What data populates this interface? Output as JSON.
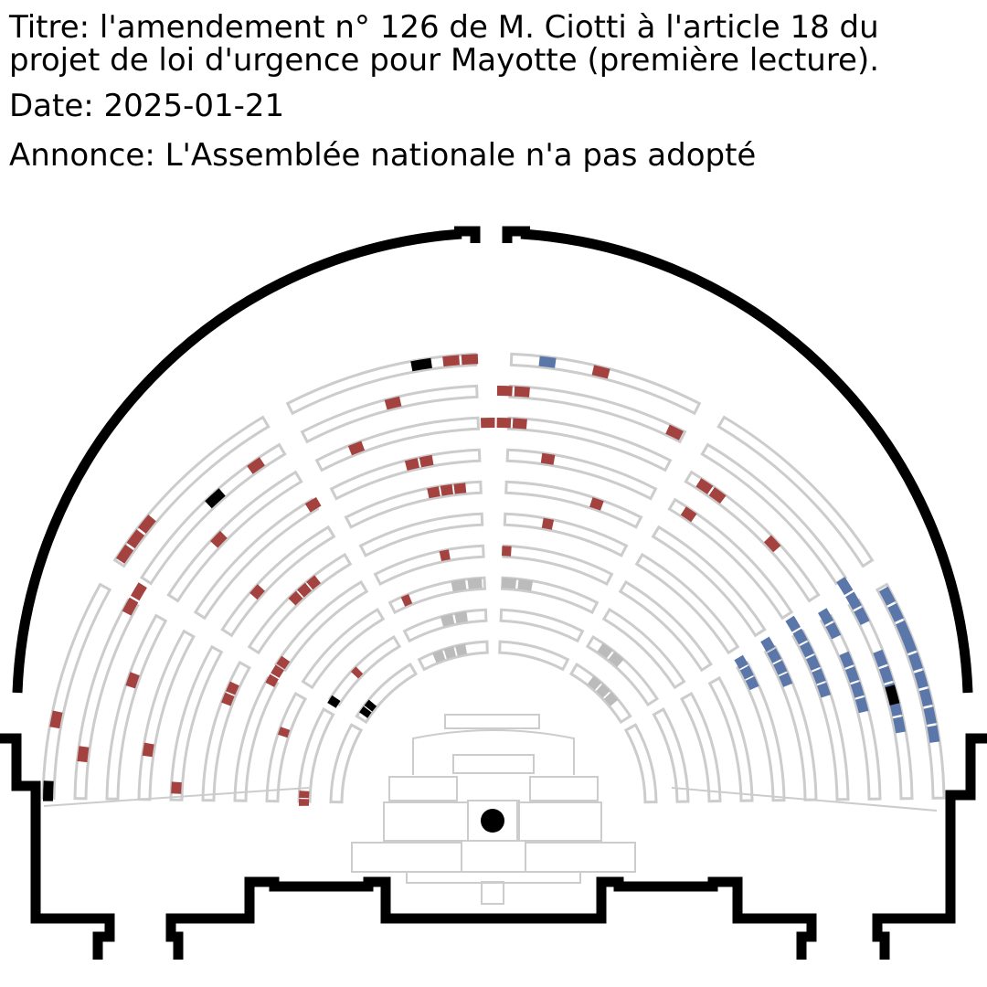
{
  "header": {
    "title_label": "Titre:",
    "title_line1": "l'amendement n° 126 de M. Ciotti à l'article 18 du",
    "title_line2": "projet de loi d'urgence pour Mayotte (première lecture).",
    "date_label": "Date:",
    "date_value": "2025-01-21",
    "announce_label": "Annonce:",
    "announce_value": "L'Assemblée nationale n'a pas adopté"
  },
  "colors": {
    "pour": "#a3423f",
    "contre": "#5b77aa",
    "abstention": "#000000",
    "bureau": "#bbbbbb",
    "empty_outline": "#cccccc",
    "wall": "#000000"
  },
  "legend_semantics": {
    "red_seat": "vote-for",
    "blue_seat": "vote-against",
    "black_seat": "other"
  }
}
